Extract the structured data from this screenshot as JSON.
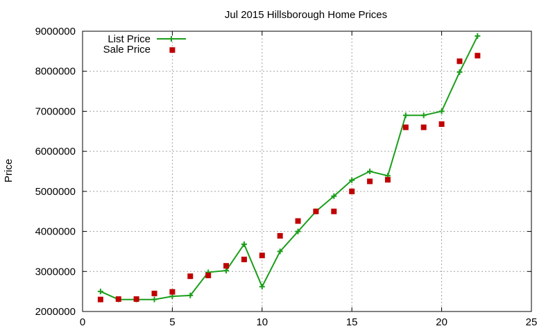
{
  "chart_data": {
    "type": "line",
    "title": "Jul 2015 Hillsborough Home Prices",
    "xlabel": "",
    "ylabel": "Price",
    "xlim": [
      0,
      25
    ],
    "ylim": [
      2000000,
      9000000
    ],
    "xticks": [
      "0",
      "5",
      "10",
      "15",
      "20",
      "25"
    ],
    "yticks": [
      "2000000",
      "3000000",
      "4000000",
      "5000000",
      "6000000",
      "7000000",
      "8000000",
      "9000000"
    ],
    "grid": true,
    "legend_position": "top-left",
    "series": [
      {
        "name": "List Price",
        "style": "line-with-plus",
        "color": "#1a9e1a",
        "x": [
          1,
          2,
          3,
          4,
          5,
          6,
          7,
          8,
          9,
          10,
          11,
          12,
          13,
          14,
          15,
          16,
          17,
          18,
          19,
          20,
          21,
          22
        ],
        "y": [
          2500000,
          2300000,
          2300000,
          2300000,
          2380000,
          2400000,
          2980000,
          3020000,
          3680000,
          2620000,
          3500000,
          4000000,
          4500000,
          4880000,
          5280000,
          5500000,
          5390000,
          6900000,
          6900000,
          7000000,
          7980000,
          8880000
        ]
      },
      {
        "name": "Sale Price",
        "style": "square-points",
        "color": "#c00000",
        "x": [
          1,
          2,
          3,
          4,
          5,
          6,
          7,
          8,
          9,
          10,
          11,
          12,
          13,
          14,
          15,
          16,
          17,
          18,
          19,
          20,
          21,
          22,
          5
        ],
        "y": [
          2300000,
          2310000,
          2310000,
          2450000,
          2490000,
          2880000,
          2900000,
          3140000,
          3300000,
          3400000,
          3890000,
          4260000,
          4500000,
          4500000,
          5000000,
          5250000,
          5290000,
          6600000,
          6600000,
          6680000,
          8250000,
          8390000,
          8530000
        ]
      }
    ]
  }
}
